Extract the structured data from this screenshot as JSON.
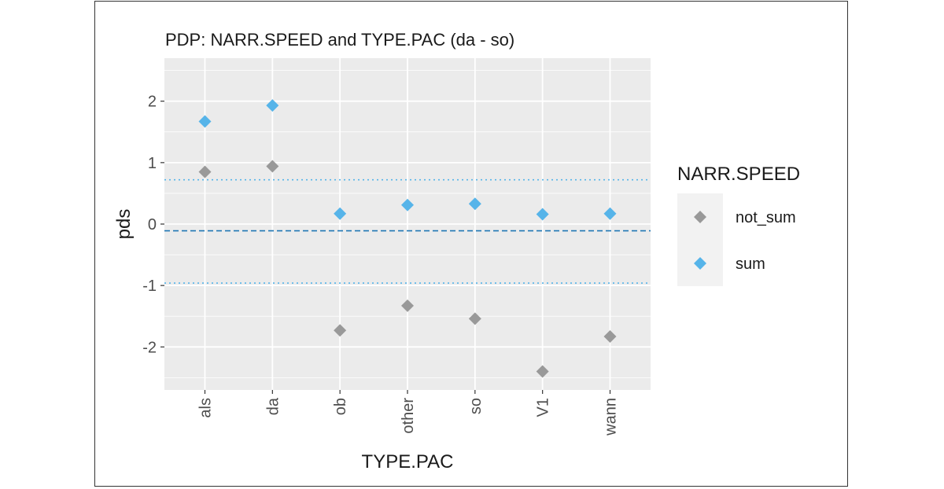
{
  "chart_data": {
    "type": "scatter",
    "title": "PDP: NARR.SPEED and TYPE.PAC (da - so)",
    "xlabel": "TYPE.PAC",
    "ylabel": "pds",
    "categories": [
      "als",
      "da",
      "ob",
      "other",
      "so",
      "V1",
      "wann"
    ],
    "ylim": [
      -2.7,
      2.7
    ],
    "yticks": [
      2,
      1,
      0,
      -1,
      -2
    ],
    "ytick_labels": [
      "2",
      "1",
      "0",
      "-1",
      "-2"
    ],
    "grid": true,
    "marker": "diamond",
    "series": [
      {
        "name": "not_sum",
        "color": "#999999",
        "values": [
          0.85,
          0.94,
          -1.73,
          -1.33,
          -1.54,
          -2.4,
          -1.83
        ]
      },
      {
        "name": "sum",
        "color": "#56B4E9",
        "values": [
          1.67,
          1.93,
          0.17,
          0.31,
          0.33,
          0.16,
          0.17
        ]
      }
    ],
    "reference_lines": [
      {
        "y": -0.11,
        "style": "dashed",
        "color": "#1f77b4"
      },
      {
        "y": 0.72,
        "style": "dotted",
        "color": "#56B4E9"
      },
      {
        "y": -0.96,
        "style": "dotted",
        "color": "#56B4E9"
      }
    ],
    "legend": {
      "title": "NARR.SPEED",
      "position": "right"
    }
  }
}
